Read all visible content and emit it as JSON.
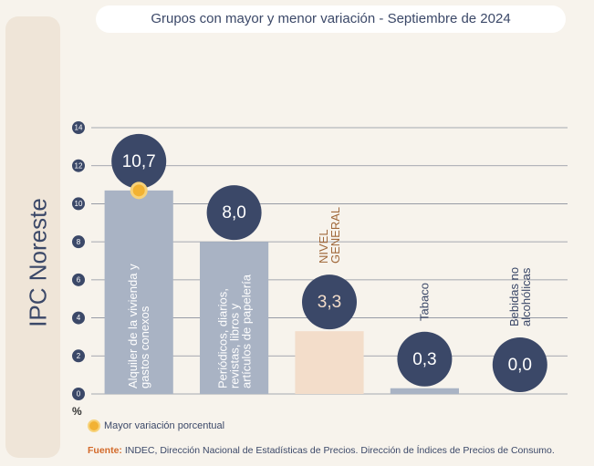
{
  "panel_title": "IPC Noreste",
  "chart_data": {
    "type": "bar",
    "title": "Grupos con mayor y menor variación - Septiembre de 2024",
    "y_label": "%",
    "categories": [
      "Alquiler de la vivienda y gastos conexos",
      "Periódicos, diarios, revistas, libros y artículos de papelería",
      "NIVEL GENERAL",
      "Tabaco",
      "Bebidas no alcohólicas"
    ],
    "values": [
      10.7,
      8.0,
      3.3,
      0.3,
      0.0
    ],
    "value_labels": [
      "10,7",
      "8,0",
      "3,3",
      "0,3",
      "0,0"
    ],
    "colors": [
      "#a9b3c4",
      "#a9b3c4",
      "#f3ddca",
      "#a9b3c4",
      "#a9b3c4"
    ],
    "ylim": [
      0,
      14
    ],
    "yticks": [
      0,
      2,
      4,
      6,
      8,
      10,
      12,
      14
    ],
    "grid": true,
    "legend": "Mayor variación porcentual"
  },
  "source": {
    "label": "Fuente:",
    "text": "INDEC, Dirección Nacional de Estadísticas de Precios. Dirección de Índices de Precios de Consumo."
  }
}
